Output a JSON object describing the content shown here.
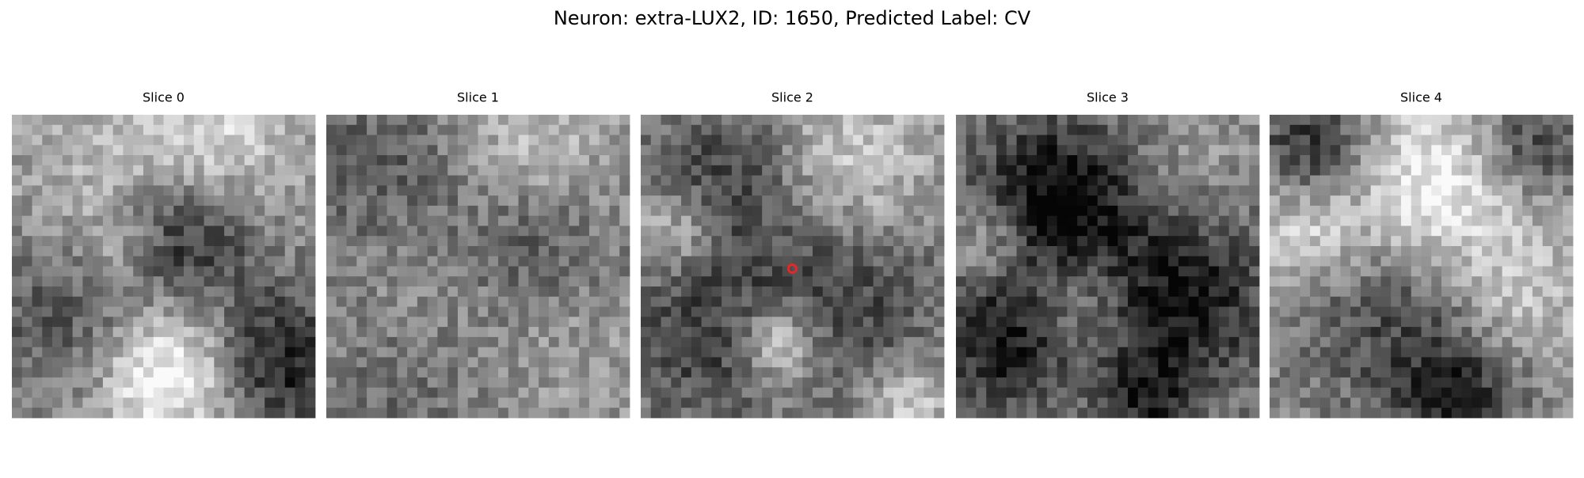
{
  "header": {
    "title": "Neuron: extra-LUX2, ID: 1650, Predicted Label: CV"
  },
  "panels": [
    {
      "title": "Slice 0"
    },
    {
      "title": "Slice 1"
    },
    {
      "title": "Slice 2"
    },
    {
      "title": "Slice 3"
    },
    {
      "title": "Slice 4"
    }
  ]
}
